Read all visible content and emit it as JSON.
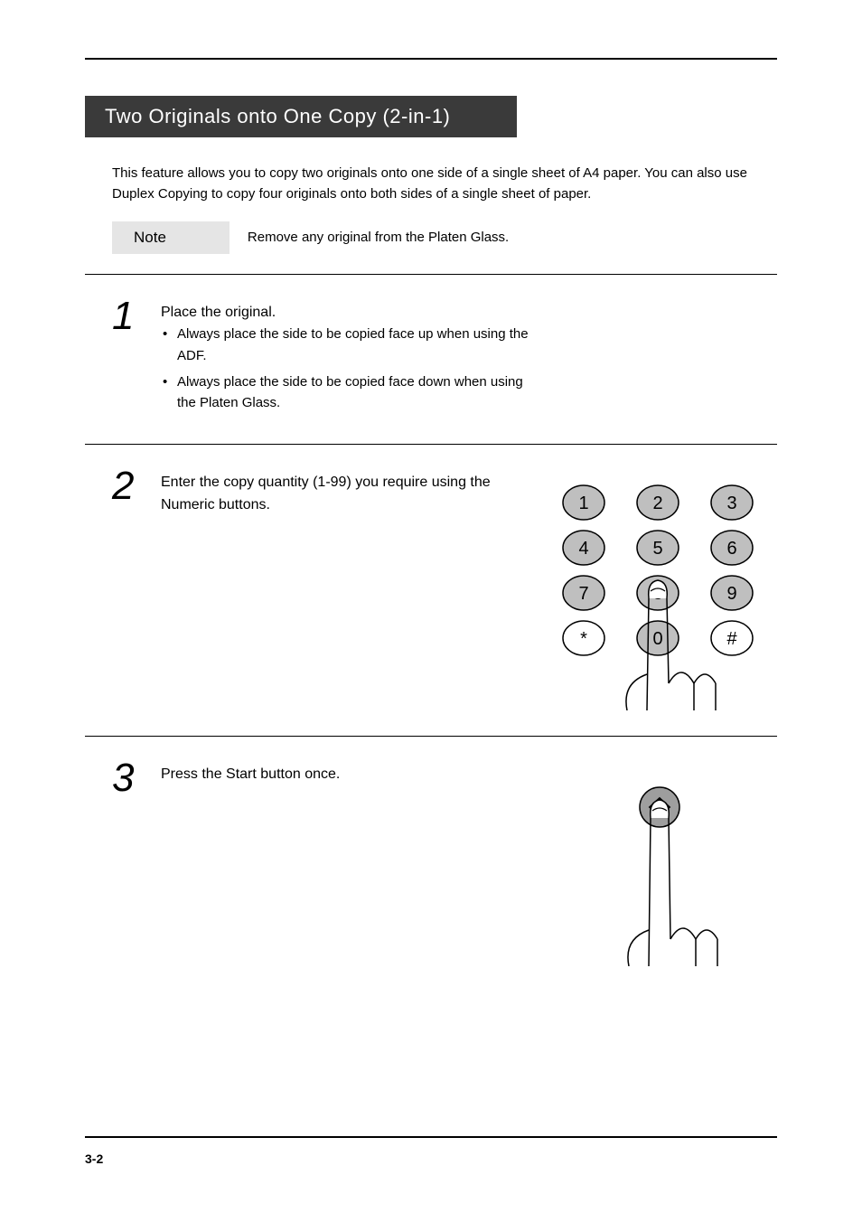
{
  "section_title": "Two Originals onto One Copy (2-in-1)",
  "intro": "This feature allows you to copy two originals onto one side of a single sheet of A4 paper. You can also use Duplex Copying to copy four originals onto both sides of a single sheet of paper.",
  "note_label": "Note",
  "note_text": "Remove any original from the Platen Glass.",
  "steps": [
    {
      "num": "1",
      "body": "<span class=\"step-title\">Place the original.</span><ul><li>Always place the side to be copied face up when using the ADF.</li><li>Always place the side to be copied face down when using the Platen Glass.</li></ul>"
    },
    {
      "num": "2",
      "body": "<span class=\"step-title\">Enter the copy quantity (1-99) you require using the Numeric buttons.</span>"
    },
    {
      "num": "3",
      "body": "<span class=\"step-title\">Press the Start button once.</span>"
    }
  ],
  "page_number": "3-2",
  "keypad": {
    "rows": [
      [
        "1",
        "2",
        "3"
      ],
      [
        "4",
        "5",
        "6"
      ],
      [
        "7",
        "8",
        "9"
      ],
      [
        "*",
        "0",
        "#"
      ]
    ],
    "fill_shaded": "#bfbfbf",
    "fill_plain": "#ffffff",
    "stroke": "#000000",
    "ellipse_rx": 23,
    "ellipse_ry": 19,
    "col_gap": 82,
    "row_gap": 50,
    "font_size": 20
  },
  "start_button": {
    "fill": "#9e9e9e",
    "stroke": "#000000",
    "radius": 22
  }
}
